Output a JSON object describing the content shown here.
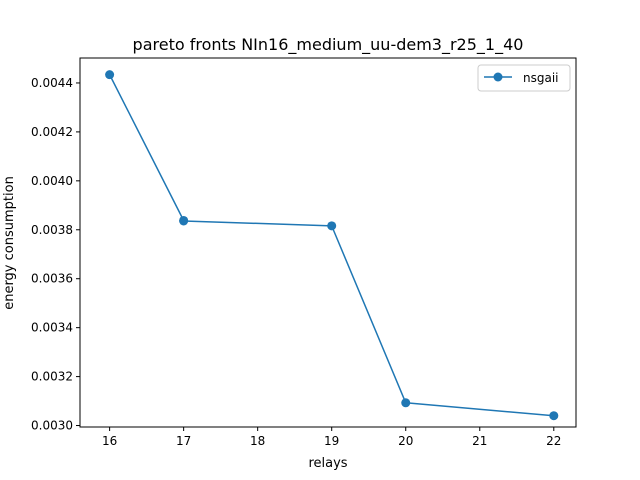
{
  "chart_data": {
    "type": "line",
    "title": "pareto fronts NIn16_medium_uu-dem3_r25_1_40",
    "xlabel": "relays",
    "ylabel": "energy consumption",
    "xlim": [
      15.6,
      22.3
    ],
    "ylim": [
      0.002994,
      0.004502
    ],
    "xticks": [
      16,
      17,
      18,
      19,
      20,
      21,
      22
    ],
    "yticks": [
      0.003,
      0.0032,
      0.0034,
      0.0036,
      0.0038,
      0.004,
      0.0042,
      0.0044
    ],
    "yticks_labels": [
      "0.0030",
      "0.0032",
      "0.0034",
      "0.0036",
      "0.0038",
      "0.0040",
      "0.0042",
      "0.0044"
    ],
    "grid": false,
    "legend_position": "top-right",
    "series": [
      {
        "name": "nsgaii",
        "color": "#1f77b4",
        "marker": "circle",
        "x": [
          16,
          17,
          17,
          19,
          20,
          22
        ],
        "y": [
          0.004434,
          0.003838,
          0.003836,
          0.003816,
          0.003093,
          0.00304
        ]
      }
    ]
  }
}
